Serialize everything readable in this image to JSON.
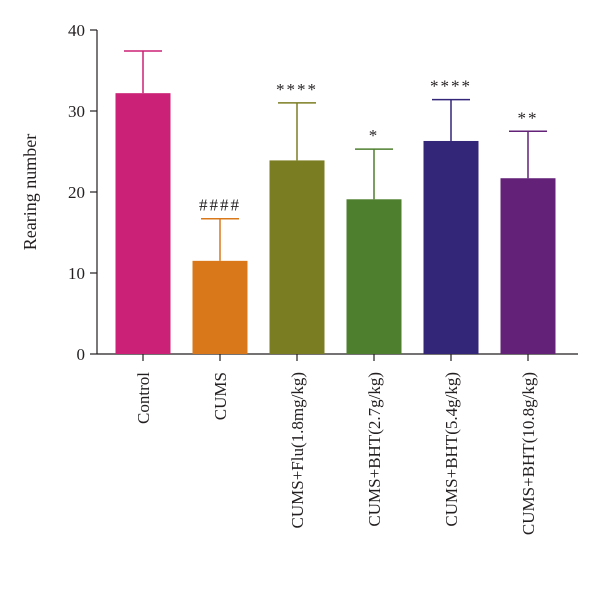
{
  "chart_data": {
    "type": "bar",
    "ylabel": "Rearing number",
    "ylim": [
      0,
      40
    ],
    "yticks": [
      0,
      10,
      20,
      30,
      40
    ],
    "categories": [
      "Control",
      "CUMS",
      "CUMS+Flu(1.8mg/kg)",
      "CUMS+BHT(2.7g/kg)",
      "CUMS+BHT(5.4g/kg)",
      "CUMS+BHT(10.8g/kg)"
    ],
    "values": [
      32.2,
      11.5,
      23.9,
      19.1,
      26.3,
      21.7
    ],
    "errors": [
      5.2,
      5.2,
      7.1,
      6.2,
      5.1,
      5.8
    ],
    "annotations": [
      "",
      "####",
      "****",
      "*",
      "****",
      "**"
    ],
    "colors": [
      "#cb2176",
      "#d9781b",
      "#7b7d22",
      "#4e7f2f",
      "#332577",
      "#632178"
    ],
    "grid": false,
    "legend": "none"
  }
}
